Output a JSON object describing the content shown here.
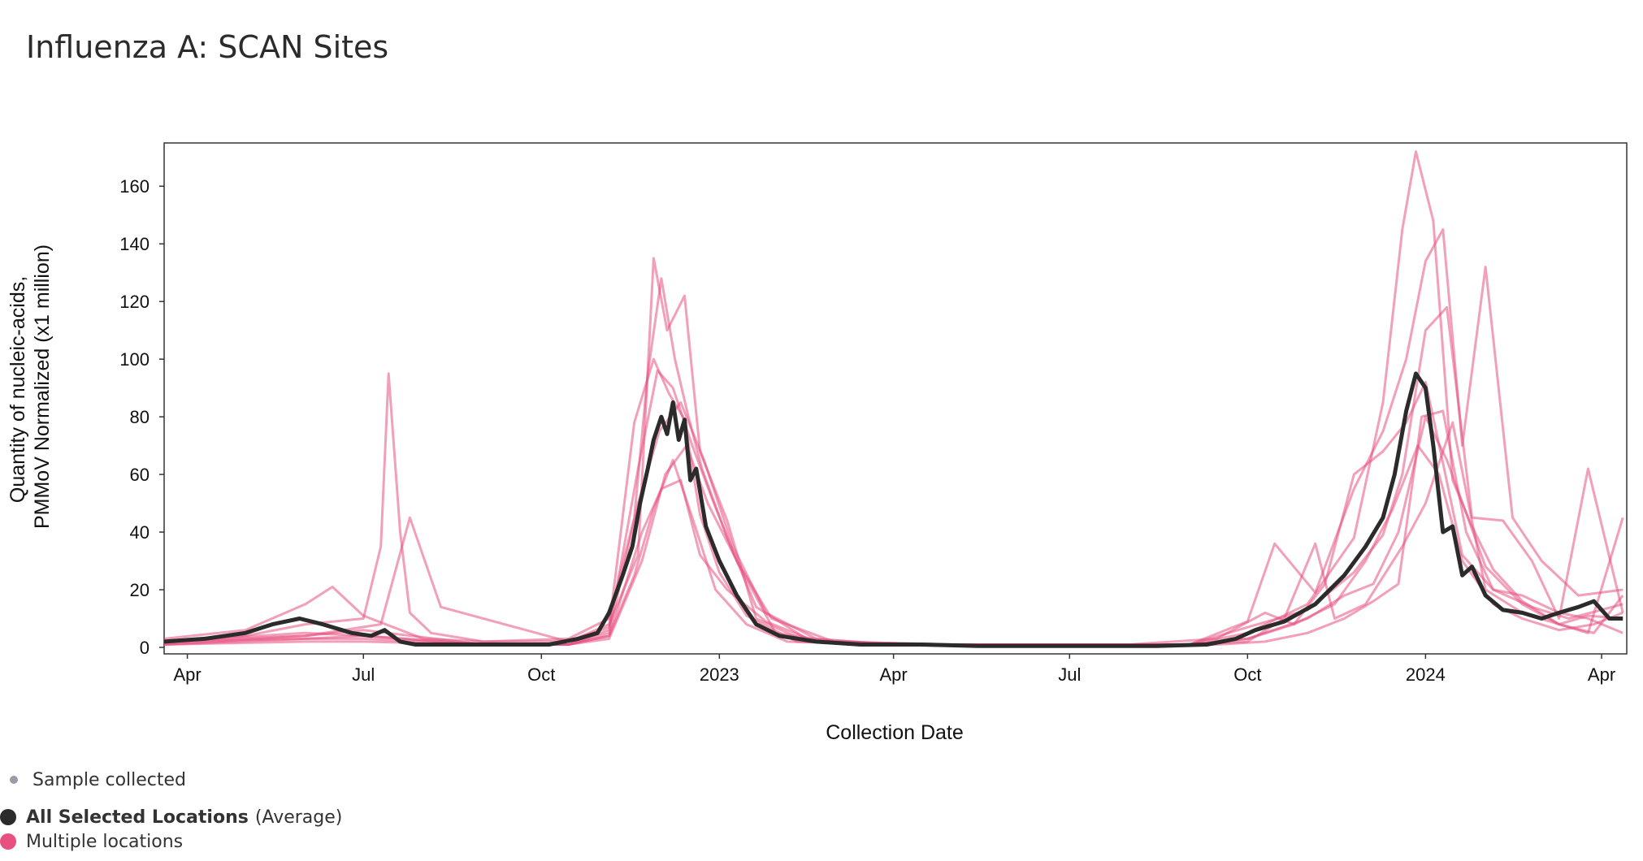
{
  "title": "Influenza A: SCAN Sites",
  "chart_data": {
    "type": "line",
    "title": "Influenza A: SCAN Sites",
    "xlabel": "Collection Date",
    "ylabel_line1": "Quantity of nucleic-acids,",
    "ylabel_line2": "PMMoV Normalized (x1 million)",
    "x_range": [
      "2022-03-20",
      "2024-04-14"
    ],
    "ylim": [
      0,
      175
    ],
    "y_ticks": [
      0,
      20,
      40,
      60,
      80,
      100,
      120,
      140,
      160
    ],
    "x_ticks": [
      {
        "date": "2022-04-01",
        "label": "Apr"
      },
      {
        "date": "2022-07-01",
        "label": "Jul"
      },
      {
        "date": "2022-10-01",
        "label": "Oct"
      },
      {
        "date": "2023-01-01",
        "label": "2023"
      },
      {
        "date": "2023-04-01",
        "label": "Apr"
      },
      {
        "date": "2023-07-01",
        "label": "Jul"
      },
      {
        "date": "2023-10-01",
        "label": "Oct"
      },
      {
        "date": "2024-01-01",
        "label": "2024"
      },
      {
        "date": "2024-04-01",
        "label": "Apr"
      }
    ],
    "grid": false,
    "legend_position": "bottom-left",
    "colors": {
      "average": "#2b2b2b",
      "locations": "#e8507f",
      "sample": "#9a9aa8"
    },
    "average_series": {
      "name": "All Selected Locations",
      "suffix": "(Average)",
      "x": [
        "2022-03-20",
        "2022-04-10",
        "2022-05-01",
        "2022-05-15",
        "2022-05-29",
        "2022-06-10",
        "2022-06-25",
        "2022-07-05",
        "2022-07-12",
        "2022-07-20",
        "2022-07-28",
        "2022-08-15",
        "2022-09-01",
        "2022-09-20",
        "2022-10-05",
        "2022-10-20",
        "2022-10-30",
        "2022-11-05",
        "2022-11-12",
        "2022-11-17",
        "2022-11-21",
        "2022-11-25",
        "2022-11-28",
        "2022-12-02",
        "2022-12-05",
        "2022-12-08",
        "2022-12-11",
        "2022-12-14",
        "2022-12-17",
        "2022-12-20",
        "2022-12-25",
        "2023-01-01",
        "2023-01-10",
        "2023-01-20",
        "2023-02-01",
        "2023-02-20",
        "2023-03-15",
        "2023-04-15",
        "2023-05-15",
        "2023-06-15",
        "2023-07-15",
        "2023-08-15",
        "2023-09-10",
        "2023-09-25",
        "2023-10-05",
        "2023-10-20",
        "2023-11-05",
        "2023-11-20",
        "2023-12-01",
        "2023-12-10",
        "2023-12-16",
        "2023-12-22",
        "2023-12-27",
        "2024-01-01",
        "2024-01-05",
        "2024-01-10",
        "2024-01-15",
        "2024-01-20",
        "2024-01-25",
        "2024-02-01",
        "2024-02-10",
        "2024-02-20",
        "2024-03-01",
        "2024-03-10",
        "2024-03-20",
        "2024-03-28",
        "2024-04-05",
        "2024-04-12"
      ],
      "y": [
        2,
        3,
        5,
        8,
        10,
        8,
        5,
        4,
        6,
        2,
        1,
        1,
        1,
        1,
        1,
        3,
        5,
        12,
        25,
        35,
        50,
        62,
        72,
        80,
        74,
        85,
        72,
        79,
        58,
        62,
        42,
        30,
        18,
        8,
        4,
        2,
        1,
        1,
        0.5,
        0.5,
        0.5,
        0.5,
        1,
        3,
        6,
        9,
        15,
        25,
        35,
        45,
        60,
        82,
        95,
        90,
        70,
        40,
        42,
        25,
        28,
        18,
        13,
        12,
        10,
        12,
        14,
        16,
        10,
        10
      ]
    },
    "location_series": [
      {
        "x": [
          "2022-03-20",
          "2022-05-01",
          "2022-06-01",
          "2022-06-15",
          "2022-07-01",
          "2022-08-01",
          "2022-09-01",
          "2022-10-15",
          "2022-11-05",
          "2022-11-18",
          "2022-11-25",
          "2022-12-02",
          "2022-12-09",
          "2022-12-16",
          "2022-12-23",
          "2023-01-05",
          "2023-01-20",
          "2023-02-15",
          "2023-04-01",
          "2023-07-01",
          "2023-09-01",
          "2023-10-01",
          "2023-11-01",
          "2023-11-25",
          "2023-12-10",
          "2023-12-20",
          "2023-12-27",
          "2024-01-05",
          "2024-01-15",
          "2024-01-25",
          "2024-02-05",
          "2024-02-20",
          "2024-03-10",
          "2024-03-25",
          "2024-04-12"
        ],
        "y": [
          3,
          6,
          15,
          21,
          11,
          3,
          2,
          3,
          10,
          45,
          95,
          128,
          100,
          80,
          62,
          38,
          14,
          3,
          1,
          1,
          1,
          5,
          15,
          38,
          85,
          145,
          172,
          148,
          58,
          42,
          27,
          16,
          8,
          11,
          10
        ]
      },
      {
        "x": [
          "2022-03-20",
          "2022-05-01",
          "2022-06-01",
          "2022-07-01",
          "2022-07-10",
          "2022-07-14",
          "2022-07-20",
          "2022-07-25",
          "2022-08-05",
          "2022-09-01",
          "2022-10-15",
          "2022-11-05",
          "2022-11-20",
          "2022-11-28",
          "2022-12-05",
          "2022-12-14",
          "2022-12-22",
          "2023-01-05",
          "2023-01-20",
          "2023-02-15",
          "2023-04-01",
          "2023-07-01",
          "2023-09-01",
          "2023-10-01",
          "2023-10-15",
          "2023-11-05",
          "2023-11-25",
          "2023-12-10",
          "2023-12-22",
          "2024-01-01",
          "2024-01-10",
          "2024-01-20",
          "2024-02-01",
          "2024-02-15",
          "2024-03-01",
          "2024-03-20",
          "2024-04-12"
        ],
        "y": [
          2,
          4,
          8,
          10,
          35,
          95,
          40,
          12,
          5,
          2,
          2,
          8,
          32,
          135,
          110,
          122,
          68,
          44,
          10,
          2,
          1,
          1,
          1,
          9,
          36,
          19,
          55,
          75,
          100,
          134,
          145,
          70,
          132,
          45,
          30,
          18,
          20
        ]
      },
      {
        "x": [
          "2022-03-20",
          "2022-06-01",
          "2022-07-10",
          "2022-07-25",
          "2022-08-10",
          "2022-10-15",
          "2022-11-05",
          "2022-11-18",
          "2022-11-28",
          "2022-12-06",
          "2022-12-14",
          "2022-12-22",
          "2023-01-01",
          "2023-01-15",
          "2023-02-10",
          "2023-04-01",
          "2023-07-01",
          "2023-09-01",
          "2023-10-01",
          "2023-11-01",
          "2023-11-25",
          "2023-12-10",
          "2023-12-20",
          "2024-01-01",
          "2024-01-12",
          "2024-01-25",
          "2024-02-10",
          "2024-02-25",
          "2024-03-10",
          "2024-03-25",
          "2024-04-12"
        ],
        "y": [
          1,
          4,
          8,
          45,
          14,
          2,
          7,
          78,
          100,
          88,
          79,
          46,
          26,
          11,
          2,
          1,
          1,
          1,
          7,
          13,
          26,
          39,
          60,
          110,
          118,
          45,
          44,
          30,
          10,
          62,
          12
        ]
      },
      {
        "x": [
          "2022-03-20",
          "2022-06-01",
          "2022-07-01",
          "2022-09-01",
          "2022-10-15",
          "2022-11-05",
          "2022-11-22",
          "2022-12-02",
          "2022-12-12",
          "2022-12-22",
          "2023-01-05",
          "2023-01-25",
          "2023-02-20",
          "2023-04-01",
          "2023-07-01",
          "2023-09-01",
          "2023-10-01",
          "2023-11-01",
          "2023-11-20",
          "2023-12-05",
          "2023-12-18",
          "2024-01-01",
          "2024-01-12",
          "2024-02-01",
          "2024-02-20",
          "2024-03-10",
          "2024-03-25",
          "2024-04-12"
        ],
        "y": [
          2,
          5,
          4,
          1,
          1,
          4,
          40,
          55,
          58,
          32,
          20,
          9,
          2,
          1,
          1,
          1,
          3,
          10,
          18,
          22,
          40,
          80,
          65,
          28,
          15,
          8,
          5,
          45
        ]
      },
      {
        "x": [
          "2022-03-20",
          "2022-06-01",
          "2022-07-01",
          "2022-09-01",
          "2022-10-15",
          "2022-11-05",
          "2022-11-20",
          "2022-11-30",
          "2022-12-08",
          "2022-12-18",
          "2022-12-28",
          "2023-01-10",
          "2023-01-30",
          "2023-03-01",
          "2023-05-01",
          "2023-08-01",
          "2023-09-15",
          "2023-10-10",
          "2023-10-25",
          "2023-11-10",
          "2023-11-25",
          "2023-12-10",
          "2023-12-22",
          "2024-01-01",
          "2024-01-10",
          "2024-01-20",
          "2024-02-05",
          "2024-02-25",
          "2024-03-15",
          "2024-04-12"
        ],
        "y": [
          1,
          3,
          3,
          1,
          1,
          6,
          62,
          96,
          90,
          70,
          52,
          30,
          5,
          2,
          1,
          1,
          3,
          12,
          8,
          22,
          60,
          68,
          78,
          92,
          64,
          32,
          20,
          14,
          10,
          15
        ]
      },
      {
        "x": [
          "2022-03-20",
          "2022-06-01",
          "2022-07-01",
          "2022-09-01",
          "2022-10-15",
          "2022-11-05",
          "2022-11-20",
          "2022-12-01",
          "2022-12-12",
          "2022-12-24",
          "2023-01-08",
          "2023-01-25",
          "2023-02-20",
          "2023-04-01",
          "2023-07-01",
          "2023-09-01",
          "2023-10-01",
          "2023-10-20",
          "2023-11-05",
          "2023-11-15",
          "2023-12-01",
          "2023-12-20",
          "2024-01-01",
          "2024-01-15",
          "2024-02-01",
          "2024-02-20",
          "2024-03-10",
          "2024-03-28",
          "2024-04-12"
        ],
        "y": [
          2,
          4,
          6,
          1,
          1,
          5,
          50,
          75,
          85,
          65,
          35,
          12,
          3,
          1,
          1,
          1,
          2,
          10,
          36,
          10,
          15,
          35,
          50,
          78,
          20,
          12,
          8,
          5,
          18
        ]
      },
      {
        "x": [
          "2022-03-20",
          "2022-06-01",
          "2022-07-01",
          "2022-09-01",
          "2022-10-15",
          "2022-11-05",
          "2022-11-22",
          "2022-12-04",
          "2022-12-15",
          "2022-12-26",
          "2023-01-10",
          "2023-01-28",
          "2023-03-01",
          "2023-05-01",
          "2023-08-01",
          "2023-09-15",
          "2023-10-10",
          "2023-11-01",
          "2023-11-20",
          "2023-12-05",
          "2023-12-18",
          "2023-12-30",
          "2024-01-10",
          "2024-01-22",
          "2024-02-05",
          "2024-02-20",
          "2024-03-10",
          "2024-03-25",
          "2024-04-12"
        ],
        "y": [
          1,
          2,
          2,
          1,
          1,
          3,
          30,
          60,
          70,
          50,
          30,
          10,
          2,
          1,
          1,
          1,
          2,
          5,
          10,
          16,
          22,
          80,
          82,
          40,
          20,
          18,
          12,
          10,
          5
        ]
      },
      {
        "x": [
          "2022-03-20",
          "2022-06-01",
          "2022-07-01",
          "2022-09-01",
          "2022-10-15",
          "2022-11-05",
          "2022-11-18",
          "2022-11-28",
          "2022-12-08",
          "2022-12-18",
          "2022-12-30",
          "2023-01-15",
          "2023-02-05",
          "2023-04-01",
          "2023-07-01",
          "2023-09-01",
          "2023-10-01",
          "2023-10-25",
          "2023-11-15",
          "2023-12-01",
          "2023-12-15",
          "2023-12-28",
          "2024-01-08",
          "2024-01-20",
          "2024-02-05",
          "2024-02-20",
          "2024-03-10",
          "2024-03-28",
          "2024-04-12"
        ],
        "y": [
          2,
          3,
          4,
          1,
          1,
          4,
          25,
          48,
          65,
          45,
          20,
          8,
          2,
          1,
          1,
          1,
          3,
          8,
          15,
          30,
          48,
          70,
          60,
          30,
          15,
          10,
          6,
          8,
          12
        ]
      }
    ]
  },
  "legend": {
    "sample_label": "Sample collected",
    "average_label": "All Selected Locations",
    "average_suffix": "(Average)",
    "locations_label": "Multiple locations"
  }
}
